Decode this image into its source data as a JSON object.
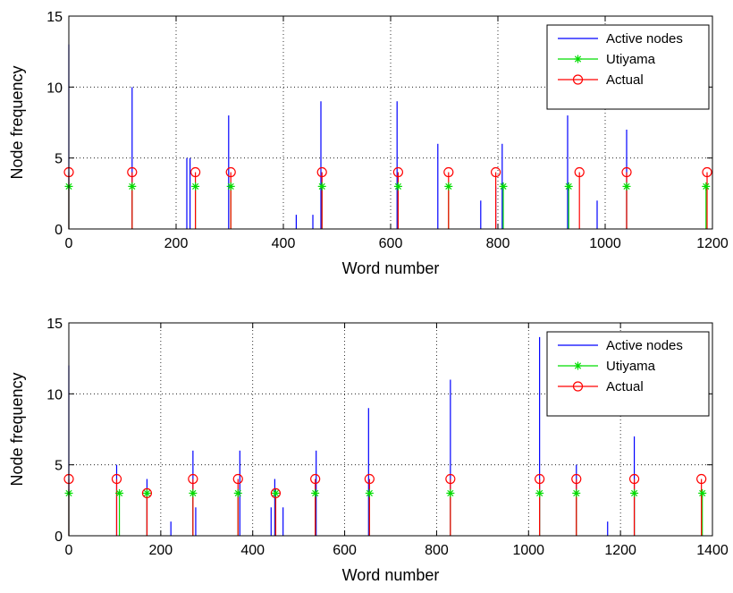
{
  "chart_data": [
    {
      "type": "stem",
      "xlabel": "Word number",
      "ylabel": "Node frequency",
      "xlim": [
        0,
        1200
      ],
      "ylim": [
        0,
        15
      ],
      "xticks": [
        0,
        200,
        400,
        600,
        800,
        1000,
        1200
      ],
      "yticks": [
        0,
        5,
        10,
        15
      ],
      "grid": true,
      "legend_position": "top-right",
      "series": [
        {
          "name": "Active nodes",
          "color": "#0000ff",
          "marker": "none",
          "points": [
            [
              0,
              13
            ],
            [
              118,
              10
            ],
            [
              220,
              5
            ],
            [
              226,
              5
            ],
            [
              298,
              8
            ],
            [
              424,
              1
            ],
            [
              455,
              1
            ],
            [
              470,
              9
            ],
            [
              612,
              9
            ],
            [
              688,
              6
            ],
            [
              768,
              2
            ],
            [
              796,
              3
            ],
            [
              808,
              6
            ],
            [
              930,
              8
            ],
            [
              985,
              2
            ],
            [
              1040,
              7
            ]
          ]
        },
        {
          "name": "Utiyama",
          "color": "#00dd00",
          "marker": "asterisk",
          "points": [
            [
              0,
              3
            ],
            [
              118,
              3
            ],
            [
              236,
              3
            ],
            [
              302,
              3
            ],
            [
              472,
              3
            ],
            [
              614,
              3
            ],
            [
              708,
              3
            ],
            [
              810,
              3
            ],
            [
              932,
              3
            ],
            [
              1040,
              3
            ],
            [
              1188,
              3
            ]
          ]
        },
        {
          "name": "Actual",
          "color": "#ff0000",
          "marker": "circle",
          "points": [
            [
              0,
              4
            ],
            [
              118,
              4
            ],
            [
              236,
              4
            ],
            [
              302,
              4
            ],
            [
              472,
              4
            ],
            [
              614,
              4
            ],
            [
              708,
              4
            ],
            [
              796,
              4
            ],
            [
              952,
              4
            ],
            [
              1040,
              4
            ],
            [
              1190,
              4
            ]
          ]
        }
      ]
    },
    {
      "type": "stem",
      "xlabel": "Word number",
      "ylabel": "Node frequency",
      "xlim": [
        0,
        1400
      ],
      "ylim": [
        0,
        15
      ],
      "xticks": [
        0,
        200,
        400,
        600,
        800,
        1000,
        1200,
        1400
      ],
      "yticks": [
        0,
        5,
        10,
        15
      ],
      "grid": true,
      "legend_position": "top-right",
      "series": [
        {
          "name": "Active nodes",
          "color": "#0000ff",
          "marker": "none",
          "points": [
            [
              0,
              12
            ],
            [
              104,
              5
            ],
            [
              170,
              4
            ],
            [
              222,
              1
            ],
            [
              270,
              6
            ],
            [
              276,
              2
            ],
            [
              372,
              6
            ],
            [
              440,
              2
            ],
            [
              448,
              4
            ],
            [
              466,
              2
            ],
            [
              538,
              6
            ],
            [
              652,
              9
            ],
            [
              830,
              11
            ],
            [
              1024,
              14
            ],
            [
              1104,
              5
            ],
            [
              1172,
              1
            ],
            [
              1230,
              7
            ]
          ]
        },
        {
          "name": "Utiyama",
          "color": "#00dd00",
          "marker": "asterisk",
          "points": [
            [
              0,
              3
            ],
            [
              110,
              3
            ],
            [
              170,
              3
            ],
            [
              270,
              3
            ],
            [
              368,
              3
            ],
            [
              450,
              3
            ],
            [
              536,
              3
            ],
            [
              654,
              3
            ],
            [
              830,
              3
            ],
            [
              1024,
              3
            ],
            [
              1104,
              3
            ],
            [
              1230,
              3
            ],
            [
              1378,
              3
            ]
          ]
        },
        {
          "name": "Actual",
          "color": "#ff0000",
          "marker": "circle",
          "points": [
            [
              0,
              4
            ],
            [
              104,
              4
            ],
            [
              170,
              3
            ],
            [
              270,
              4
            ],
            [
              368,
              4
            ],
            [
              450,
              3
            ],
            [
              536,
              4
            ],
            [
              654,
              4
            ],
            [
              830,
              4
            ],
            [
              1024,
              4
            ],
            [
              1104,
              4
            ],
            [
              1230,
              4
            ],
            [
              1376,
              4
            ]
          ]
        }
      ]
    }
  ]
}
